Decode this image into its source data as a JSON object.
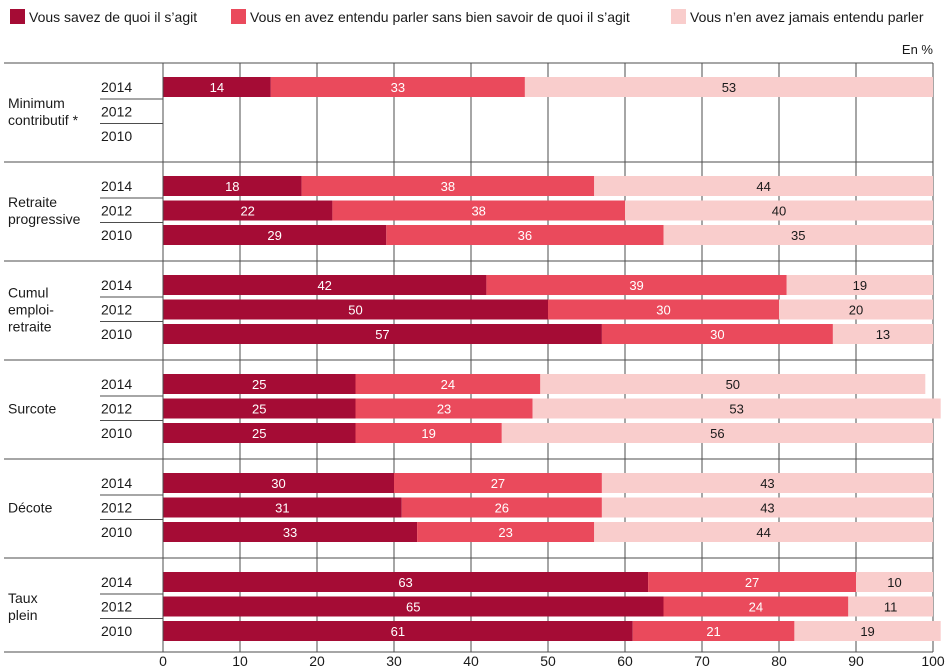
{
  "chart_data": {
    "type": "bar",
    "orientation": "horizontal",
    "stacked": true,
    "unit_label": "En %",
    "xlim": [
      0,
      100
    ],
    "x_ticks": [
      0,
      10,
      20,
      30,
      40,
      50,
      60,
      70,
      80,
      90,
      100
    ],
    "grid": true,
    "legend_position": "top-left",
    "series": [
      {
        "name": "Vous savez de quoi il s’agit",
        "color": "#a50c35"
      },
      {
        "name": "Vous en avez entendu parler sans bien savoir de quoi il s’agit",
        "color": "#ea4a5c"
      },
      {
        "name": "Vous n’en avez jamais entendu parler",
        "color": "#f9cdcc"
      }
    ],
    "groups": [
      {
        "label": [
          "Minimum",
          "contributif *"
        ],
        "rows": [
          {
            "year": "2014",
            "values": [
              14,
              33,
              53
            ]
          },
          {
            "year": "2012",
            "values": null
          },
          {
            "year": "2010",
            "values": null
          }
        ]
      },
      {
        "label": [
          "Retraite",
          "progressive"
        ],
        "rows": [
          {
            "year": "2014",
            "values": [
              18,
              38,
              44
            ]
          },
          {
            "year": "2012",
            "values": [
              22,
              38,
              40
            ]
          },
          {
            "year": "2010",
            "values": [
              29,
              36,
              35
            ]
          }
        ]
      },
      {
        "label": [
          "Cumul",
          "emploi-",
          "retraite"
        ],
        "rows": [
          {
            "year": "2014",
            "values": [
              42,
              39,
              19
            ]
          },
          {
            "year": "2012",
            "values": [
              50,
              30,
              20
            ]
          },
          {
            "year": "2010",
            "values": [
              57,
              30,
              13
            ]
          }
        ]
      },
      {
        "label": [
          "Surcote"
        ],
        "rows": [
          {
            "year": "2014",
            "values": [
              25,
              24,
              50
            ]
          },
          {
            "year": "2012",
            "values": [
              25,
              23,
              53
            ]
          },
          {
            "year": "2010",
            "values": [
              25,
              19,
              56
            ]
          }
        ]
      },
      {
        "label": [
          "Décote"
        ],
        "rows": [
          {
            "year": "2014",
            "values": [
              30,
              27,
              43
            ]
          },
          {
            "year": "2012",
            "values": [
              31,
              26,
              43
            ]
          },
          {
            "year": "2010",
            "values": [
              33,
              23,
              44
            ]
          }
        ]
      },
      {
        "label": [
          "Taux",
          "plein"
        ],
        "rows": [
          {
            "year": "2014",
            "values": [
              63,
              27,
              10
            ]
          },
          {
            "year": "2012",
            "values": [
              65,
              24,
              11
            ]
          },
          {
            "year": "2010",
            "values": [
              61,
              21,
              19
            ]
          }
        ]
      }
    ]
  }
}
